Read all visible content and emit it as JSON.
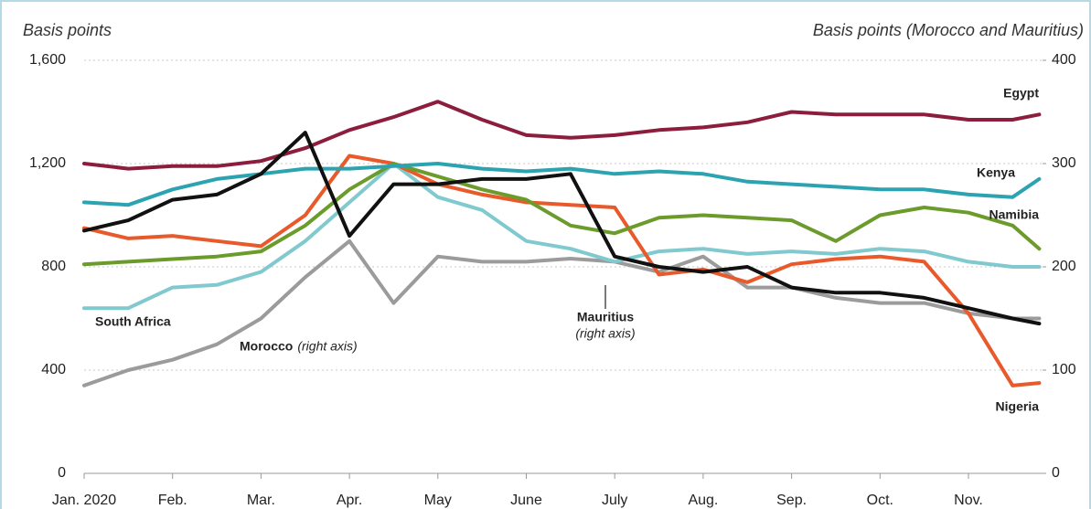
{
  "chart_data": {
    "type": "line",
    "ylabel": "Basis points",
    "y2label": "Basis points (Morocco and Mauritius)",
    "ylim": [
      0,
      1600
    ],
    "yticks": [
      0,
      {
        "value": 400,
        "label": "400"
      },
      {
        "value": 800,
        "label": "800"
      },
      {
        "value": 1200,
        "label": "1,200"
      },
      {
        "value": 1600,
        "label": "1,600"
      }
    ],
    "y2lim": [
      0,
      400
    ],
    "y2ticks": [
      0,
      100,
      200,
      300,
      400
    ],
    "xlim": [
      0,
      10.8
    ],
    "xticks": [
      {
        "value": 0,
        "label": "Jan. 2020"
      },
      {
        "value": 1,
        "label": "Feb."
      },
      {
        "value": 2,
        "label": "Mar."
      },
      {
        "value": 3,
        "label": "Apr."
      },
      {
        "value": 4,
        "label": "May"
      },
      {
        "value": 5,
        "label": "June"
      },
      {
        "value": 6,
        "label": "July"
      },
      {
        "value": 7,
        "label": "Aug."
      },
      {
        "value": 8,
        "label": "Sep."
      },
      {
        "value": 9,
        "label": "Oct."
      },
      {
        "value": 10,
        "label": "Nov."
      }
    ],
    "grid": true,
    "x": [
      0,
      0.5,
      1,
      1.5,
      2,
      2.5,
      3,
      3.5,
      4,
      4.5,
      5,
      5.5,
      6,
      6.5,
      7,
      7.5,
      8,
      8.5,
      9,
      9.5,
      10,
      10.5,
      10.8
    ],
    "series": [
      {
        "name": "Egypt",
        "color": "#8c1d3c",
        "values": [
          1200,
          1180,
          1190,
          1190,
          1210,
          1260,
          1330,
          1380,
          1440,
          1370,
          1310,
          1300,
          1310,
          1330,
          1340,
          1360,
          1400,
          1390,
          1390,
          1390,
          1370,
          1370,
          1390
        ]
      },
      {
        "name": "Kenya",
        "color": "#2ba3b1",
        "values": [
          1050,
          1040,
          1100,
          1140,
          1160,
          1180,
          1180,
          1190,
          1200,
          1180,
          1170,
          1180,
          1160,
          1170,
          1160,
          1130,
          1120,
          1110,
          1100,
          1100,
          1080,
          1070,
          1140
        ]
      },
      {
        "name": "Namibia",
        "color": "#6b9b2b",
        "values": [
          810,
          820,
          830,
          840,
          860,
          960,
          1100,
          1200,
          1150,
          1100,
          1060,
          960,
          930,
          990,
          1000,
          990,
          980,
          900,
          1000,
          1030,
          1010,
          960,
          870
        ]
      },
      {
        "name": "South Africa",
        "color": "#80c9cf",
        "values": [
          640,
          640,
          720,
          730,
          780,
          900,
          1050,
          1200,
          1070,
          1020,
          900,
          870,
          820,
          860,
          870,
          850,
          860,
          850,
          870,
          860,
          820,
          800,
          800
        ]
      },
      {
        "name": "Nigeria",
        "color": "#e85a2b",
        "values": [
          950,
          910,
          920,
          900,
          880,
          1000,
          1230,
          1200,
          1120,
          1080,
          1050,
          1040,
          1030,
          770,
          790,
          740,
          810,
          830,
          840,
          820,
          620,
          340,
          350
        ]
      },
      {
        "name": "Morocco",
        "note": "(right axis)",
        "axis": "y2",
        "color": "#9b9b9b",
        "values": [
          85,
          100,
          110,
          125,
          150,
          190,
          225,
          165,
          210,
          205,
          205,
          208,
          205,
          195,
          210,
          180,
          180,
          170,
          165,
          165,
          155,
          150,
          150
        ]
      },
      {
        "name": "Mauritius",
        "note": "(right axis)",
        "axis": "y2",
        "color": "#111111",
        "values": [
          235,
          245,
          265,
          270,
          290,
          330,
          230,
          280,
          280,
          285,
          285,
          290,
          210,
          200,
          195,
          200,
          180,
          175,
          175,
          170,
          160,
          150,
          145
        ]
      }
    ]
  }
}
